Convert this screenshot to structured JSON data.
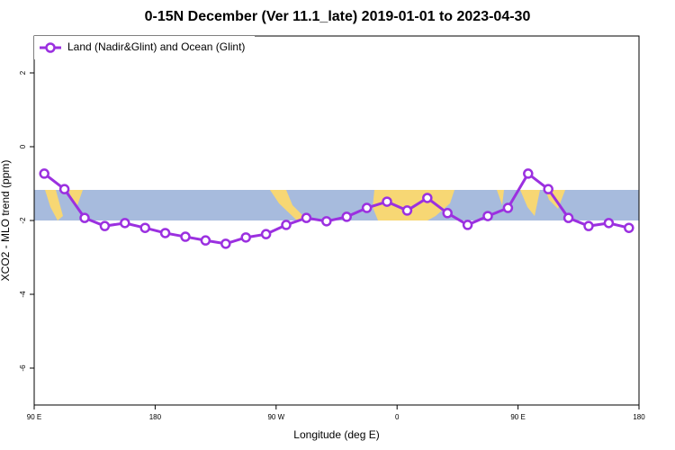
{
  "chart_data": {
    "type": "line",
    "title": "0-15N December (Ver 11.1_late)   2019-01-01 to 2023-04-30",
    "x_label": "Longitude (deg E)",
    "y_label": "XCO2 - MLO trend (ppm)",
    "xlim": [
      90,
      540
    ],
    "xticks": [
      {
        "value": 90,
        "label": "90 E"
      },
      180,
      {
        "value": 270,
        "label": "90 W"
      },
      {
        "value": 360,
        "label": "0"
      },
      {
        "value": 450,
        "label": "90 E"
      },
      {
        "value": 540,
        "label": "180"
      }
    ],
    "ylim": [
      -7,
      3
    ],
    "yticks": [
      -6,
      -4,
      -2,
      0,
      2
    ],
    "legend": "upper left",
    "series": [
      {
        "name": "Land (Nadir&Glint) and Ocean (Glint)",
        "color": "#9b30e0",
        "x": [
          97.5,
          112.5,
          127.5,
          142.5,
          157.5,
          172.5,
          187.5,
          202.5,
          217.5,
          232.5,
          247.5,
          262.5,
          277.5,
          292.5,
          307.5,
          322.5,
          337.5,
          352.5,
          367.5,
          382.5,
          397.5,
          412.5,
          427.5,
          442.5,
          457.5,
          472.5,
          487.5,
          502.5,
          517.5,
          532.5
        ],
        "values": [
          -0.73,
          -1.15,
          -1.93,
          -2.15,
          -2.07,
          -2.2,
          -2.34,
          -2.44,
          -2.54,
          -2.63,
          -2.46,
          -2.37,
          -2.12,
          -1.93,
          -2.02,
          -1.9,
          -1.66,
          -1.49,
          -1.73,
          -1.39,
          -1.8,
          -2.12,
          -1.88,
          -1.66,
          -0.73,
          -1.15,
          -1.93,
          -2.15,
          -2.07,
          -2.2
        ]
      }
    ]
  }
}
